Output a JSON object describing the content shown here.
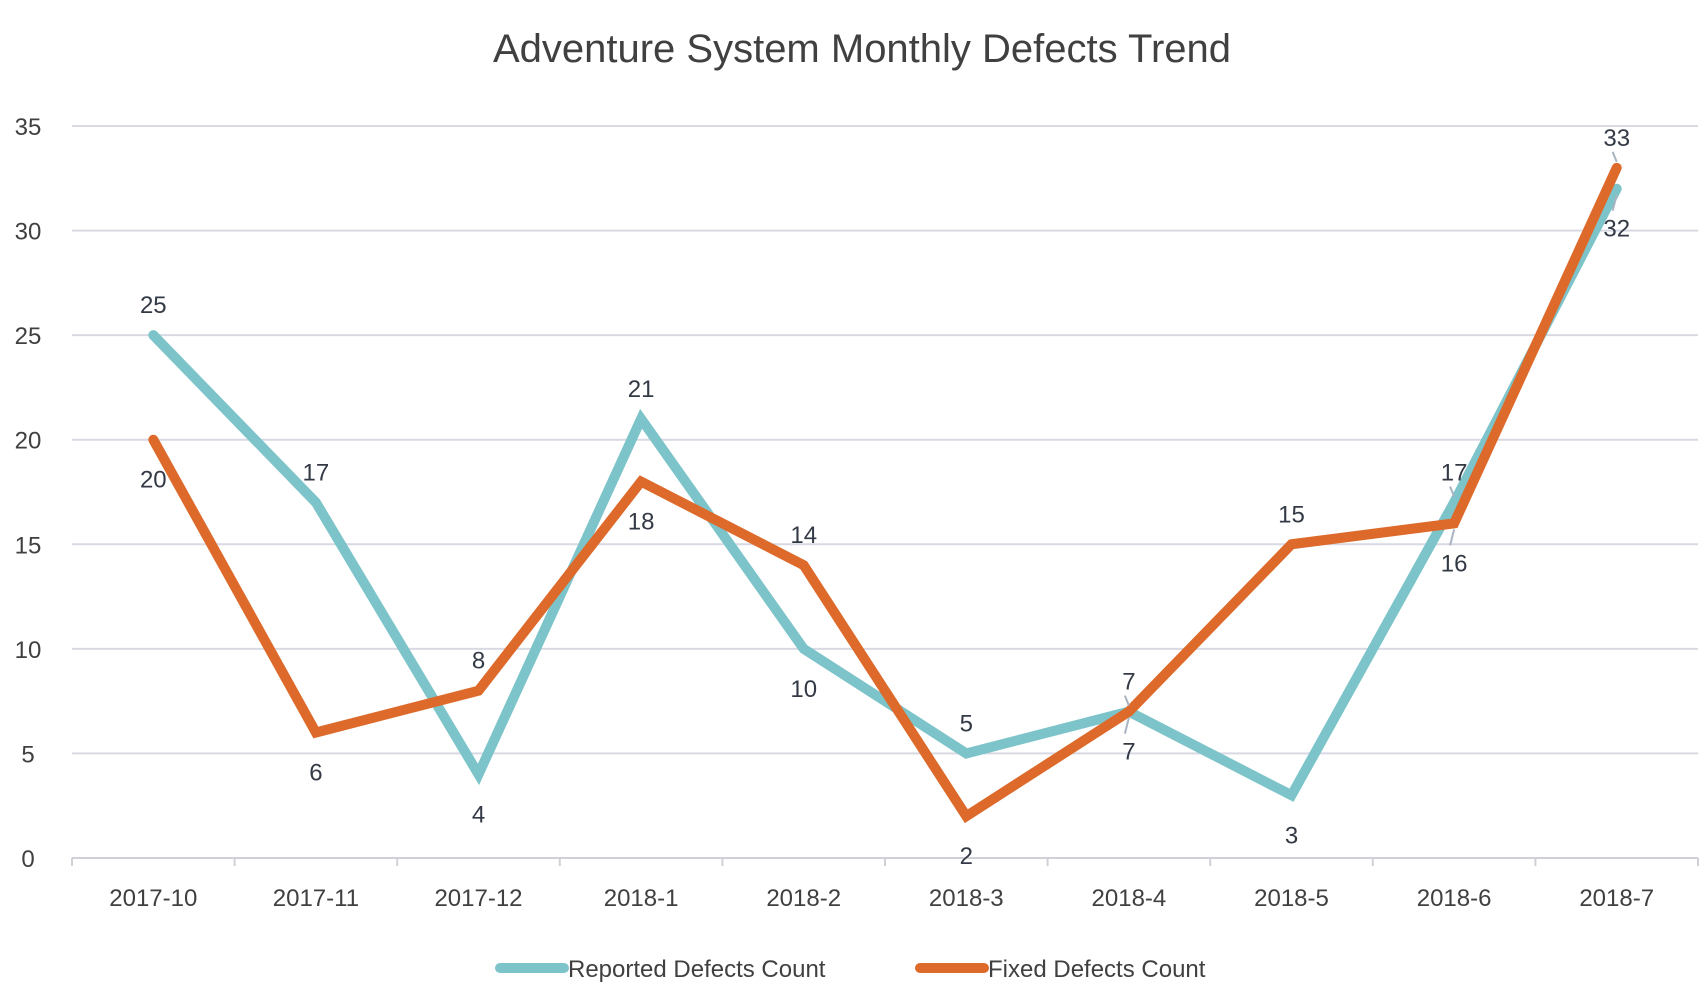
{
  "chart_data": {
    "type": "line",
    "title": "Adventure System Monthly Defects Trend",
    "xlabel": "",
    "ylabel": "",
    "categories": [
      "2017-10",
      "2017-11",
      "2017-12",
      "2018-1",
      "2018-2",
      "2018-3",
      "2018-4",
      "2018-5",
      "2018-6",
      "2018-7"
    ],
    "ylim": [
      0,
      35
    ],
    "yticks": [
      0,
      5,
      10,
      15,
      20,
      25,
      30,
      35
    ],
    "grid": true,
    "legend_position": "bottom",
    "series": [
      {
        "name": "Reported Defects  Count",
        "color": "#7cc4c9",
        "values": [
          25,
          17,
          4,
          21,
          10,
          5,
          7,
          3,
          17,
          32
        ]
      },
      {
        "name": "Fixed Defects  Count",
        "color": "#dd6a2a",
        "values": [
          20,
          6,
          8,
          18,
          14,
          2,
          7,
          15,
          16,
          33
        ]
      }
    ]
  }
}
